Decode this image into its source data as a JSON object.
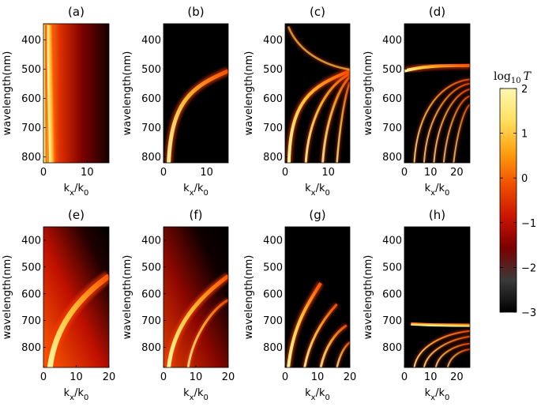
{
  "figure": {
    "colorbar": {
      "title_text": "log",
      "title_sub": "10",
      "title_var": "T",
      "min": -3,
      "max": 2,
      "ticks": [
        "2",
        "1",
        "0",
        "−1",
        "−2",
        "−3"
      ],
      "tick_values": [
        2,
        1,
        0,
        -1,
        -2,
        -3
      ],
      "colormap": [
        "#000000",
        "#3a3a3a",
        "#7a0000",
        "#cc1500",
        "#f05000",
        "#ffa010",
        "#ffe060",
        "#fff8b0"
      ]
    }
  },
  "chart_data": [
    {
      "type": "heatmap",
      "title": "(a)",
      "xlabel_main": "k",
      "xlabel_sub1": "x",
      "xlabel_mid": "/k",
      "xlabel_sub2": "0",
      "ylabel": "wavelength(nm)",
      "xlim": [
        0,
        15
      ],
      "ylim": [
        820,
        345
      ],
      "xticks": [
        0,
        10
      ],
      "xticklabels": [
        "0",
        "10"
      ],
      "yticks": [
        400,
        500,
        600,
        700,
        800
      ],
      "yticklabels": [
        "400",
        "500",
        "600",
        "700",
        "800"
      ]
    },
    {
      "type": "heatmap",
      "title": "(b)",
      "xlabel_main": "k",
      "xlabel_sub1": "x",
      "xlabel_mid": "/k",
      "xlabel_sub2": "0",
      "ylabel": "wavelength(nm)",
      "xlim": [
        0,
        15
      ],
      "ylim": [
        820,
        345
      ],
      "xticks": [
        0,
        10
      ],
      "xticklabels": [
        "0",
        "10"
      ],
      "yticks": [
        400,
        500,
        600,
        700,
        800
      ],
      "yticklabels": [
        "400",
        "500",
        "600",
        "700",
        "800"
      ]
    },
    {
      "type": "heatmap",
      "title": "(c)",
      "xlabel_main": "k",
      "xlabel_sub1": "x",
      "xlabel_mid": "/k",
      "xlabel_sub2": "0",
      "ylabel": "wavelength(nm)",
      "xlim": [
        0,
        15
      ],
      "ylim": [
        820,
        345
      ],
      "xticks": [
        0,
        10
      ],
      "xticklabels": [
        "0",
        "10"
      ],
      "yticks": [
        400,
        500,
        600,
        700,
        800
      ],
      "yticklabels": [
        "400",
        "500",
        "600",
        "700",
        "800"
      ]
    },
    {
      "type": "heatmap",
      "title": "(d)",
      "xlabel_main": "k",
      "xlabel_sub1": "x",
      "xlabel_mid": "/k",
      "xlabel_sub2": "0",
      "ylabel": "wavelength(nm)",
      "xlim": [
        0,
        25
      ],
      "ylim": [
        820,
        345
      ],
      "xticks": [
        0,
        10,
        20
      ],
      "xticklabels": [
        "0",
        "10",
        "20"
      ],
      "yticks": [
        400,
        500,
        600,
        700,
        800
      ],
      "yticklabels": [
        "400",
        "500",
        "600",
        "700",
        "800"
      ]
    },
    {
      "type": "heatmap",
      "title": "(e)",
      "xlabel_main": "k",
      "xlabel_sub1": "x",
      "xlabel_mid": "/k",
      "xlabel_sub2": "0",
      "ylabel": "wavelength(nm)",
      "xlim": [
        0,
        20
      ],
      "ylim": [
        875,
        350
      ],
      "xticks": [
        0,
        10,
        20
      ],
      "xticklabels": [
        "0",
        "10",
        "20"
      ],
      "yticks": [
        400,
        500,
        600,
        700,
        800
      ],
      "yticklabels": [
        "400",
        "500",
        "600",
        "700",
        "800"
      ]
    },
    {
      "type": "heatmap",
      "title": "(f)",
      "xlabel_main": "k",
      "xlabel_sub1": "x",
      "xlabel_mid": "/k",
      "xlabel_sub2": "0",
      "ylabel": "wavelength(nm)",
      "xlim": [
        0,
        20
      ],
      "ylim": [
        875,
        350
      ],
      "xticks": [
        0,
        10,
        20
      ],
      "xticklabels": [
        "0",
        "10",
        "20"
      ],
      "yticks": [
        400,
        500,
        600,
        700,
        800
      ],
      "yticklabels": [
        "400",
        "500",
        "600",
        "700",
        "800"
      ]
    },
    {
      "type": "heatmap",
      "title": "(g)",
      "xlabel_main": "k",
      "xlabel_sub1": "x",
      "xlabel_mid": "/k",
      "xlabel_sub2": "0",
      "ylabel": "wavelength(nm)",
      "xlim": [
        0,
        20
      ],
      "ylim": [
        875,
        350
      ],
      "xticks": [
        0,
        10,
        20
      ],
      "xticklabels": [
        "0",
        "10",
        "20"
      ],
      "yticks": [
        400,
        500,
        600,
        700,
        800
      ],
      "yticklabels": [
        "400",
        "500",
        "600",
        "700",
        "800"
      ]
    },
    {
      "type": "heatmap",
      "title": "(h)",
      "xlabel_main": "k",
      "xlabel_sub1": "x",
      "xlabel_mid": "/k",
      "xlabel_sub2": "0",
      "ylabel": "wavelength(nm)",
      "xlim": [
        0,
        25
      ],
      "ylim": [
        875,
        350
      ],
      "xticks": [
        0,
        10,
        20
      ],
      "xticklabels": [
        "0",
        "10",
        "20"
      ],
      "yticks": [
        400,
        500,
        600,
        700,
        800
      ],
      "yticklabels": [
        "400",
        "500",
        "600",
        "700",
        "800"
      ]
    }
  ]
}
